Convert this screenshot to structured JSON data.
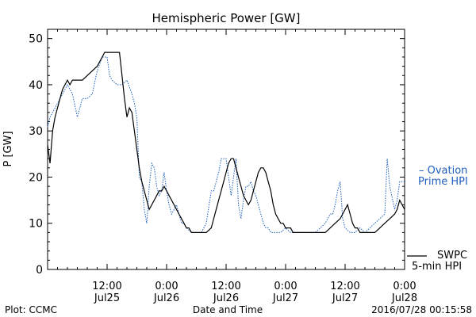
{
  "chart_data": {
    "type": "line",
    "title": "Hemispheric Power [GW]",
    "xlabel": "Date and Time",
    "ylabel": "P [GW]",
    "ylim": [
      0,
      52
    ],
    "xlim_hours": [
      0,
      72
    ],
    "grid": false,
    "yticks": [
      "0",
      "10",
      "20",
      "30",
      "40",
      "50"
    ],
    "xticks": [
      {
        "hour": 12,
        "time": "12:00",
        "date": "Jul25"
      },
      {
        "hour": 24,
        "time": "0:00",
        "date": "Jul26"
      },
      {
        "hour": 36,
        "time": "12:00",
        "date": "Jul26"
      },
      {
        "hour": 48,
        "time": "0:00",
        "date": "Jul27"
      },
      {
        "hour": 60,
        "time": "12:00",
        "date": "Jul27"
      },
      {
        "hour": 72,
        "time": "0:00",
        "date": "Jul28"
      }
    ],
    "series": [
      {
        "name": "SWPC 5-min HPI",
        "legend_lines": [
          "SWPC",
          "5-min HPI"
        ],
        "color": "#000000",
        "style": "solid",
        "points": [
          [
            0.0,
            27
          ],
          [
            0.5,
            23
          ],
          [
            1.0,
            30
          ],
          [
            1.5,
            33
          ],
          [
            2.0,
            35
          ],
          [
            2.5,
            37
          ],
          [
            3.0,
            39
          ],
          [
            3.5,
            40
          ],
          [
            4.0,
            41
          ],
          [
            4.5,
            40
          ],
          [
            5.0,
            41
          ],
          [
            6.0,
            41
          ],
          [
            7.0,
            41
          ],
          [
            8.0,
            42
          ],
          [
            9.0,
            43
          ],
          [
            10.0,
            44
          ],
          [
            11.0,
            46
          ],
          [
            11.5,
            47
          ],
          [
            12.0,
            47
          ],
          [
            13.0,
            47
          ],
          [
            14.0,
            47
          ],
          [
            14.5,
            47
          ],
          [
            15.0,
            42
          ],
          [
            15.5,
            37
          ],
          [
            16.0,
            33
          ],
          [
            16.5,
            35
          ],
          [
            17.0,
            34
          ],
          [
            17.5,
            30
          ],
          [
            18.0,
            26
          ],
          [
            18.5,
            22
          ],
          [
            19.0,
            19
          ],
          [
            19.5,
            17
          ],
          [
            20.0,
            15
          ],
          [
            20.5,
            13
          ],
          [
            21.0,
            14
          ],
          [
            21.5,
            15
          ],
          [
            22.0,
            16
          ],
          [
            22.5,
            17
          ],
          [
            23.0,
            17
          ],
          [
            23.5,
            18
          ],
          [
            24.0,
            17
          ],
          [
            24.5,
            16
          ],
          [
            25.0,
            15
          ],
          [
            25.5,
            14
          ],
          [
            26.0,
            13
          ],
          [
            26.5,
            12
          ],
          [
            27.0,
            11
          ],
          [
            27.5,
            10
          ],
          [
            28.0,
            9
          ],
          [
            28.5,
            9
          ],
          [
            29.0,
            8
          ],
          [
            30.0,
            8
          ],
          [
            31.0,
            8
          ],
          [
            32.0,
            8
          ],
          [
            33.0,
            9
          ],
          [
            33.5,
            11
          ],
          [
            34.0,
            13
          ],
          [
            34.5,
            15
          ],
          [
            35.0,
            17
          ],
          [
            35.5,
            19
          ],
          [
            36.0,
            21
          ],
          [
            36.5,
            23
          ],
          [
            37.0,
            24
          ],
          [
            37.5,
            24
          ],
          [
            38.0,
            22
          ],
          [
            38.5,
            20
          ],
          [
            39.0,
            18
          ],
          [
            39.5,
            16
          ],
          [
            40.0,
            15
          ],
          [
            40.5,
            14
          ],
          [
            41.0,
            15
          ],
          [
            41.5,
            17
          ],
          [
            42.0,
            19
          ],
          [
            42.5,
            21
          ],
          [
            43.0,
            22
          ],
          [
            43.5,
            22
          ],
          [
            44.0,
            21
          ],
          [
            44.5,
            19
          ],
          [
            45.0,
            17
          ],
          [
            45.5,
            14
          ],
          [
            46.0,
            12
          ],
          [
            46.5,
            11
          ],
          [
            47.0,
            10
          ],
          [
            47.5,
            10
          ],
          [
            48.0,
            9
          ],
          [
            48.5,
            9
          ],
          [
            49.0,
            9
          ],
          [
            49.5,
            8
          ],
          [
            50.0,
            8
          ],
          [
            51.0,
            8
          ],
          [
            52.0,
            8
          ],
          [
            53.0,
            8
          ],
          [
            54.0,
            8
          ],
          [
            55.0,
            8
          ],
          [
            56.0,
            8
          ],
          [
            57.0,
            9
          ],
          [
            58.0,
            10
          ],
          [
            59.0,
            11
          ],
          [
            59.5,
            12
          ],
          [
            60.0,
            13
          ],
          [
            60.5,
            14
          ],
          [
            61.0,
            12
          ],
          [
            61.5,
            10
          ],
          [
            62.0,
            9
          ],
          [
            62.5,
            9
          ],
          [
            63.0,
            8
          ],
          [
            64.0,
            8
          ],
          [
            65.0,
            8
          ],
          [
            66.0,
            8
          ],
          [
            67.0,
            9
          ],
          [
            68.0,
            10
          ],
          [
            69.0,
            11
          ],
          [
            70.0,
            12
          ],
          [
            70.5,
            13
          ],
          [
            71.0,
            15
          ],
          [
            71.5,
            14
          ],
          [
            72.0,
            13
          ]
        ]
      },
      {
        "name": "Ovation Prime HPI",
        "legend_lines": [
          "– Ovation",
          "Prime HPI"
        ],
        "color": "#1f5fbf",
        "style": "dotted",
        "points": [
          [
            0.0,
            31
          ],
          [
            0.5,
            33
          ],
          [
            1.0,
            34
          ],
          [
            2.0,
            36
          ],
          [
            3.0,
            38
          ],
          [
            4.0,
            40
          ],
          [
            5.0,
            38
          ],
          [
            6.0,
            33
          ],
          [
            7.0,
            37
          ],
          [
            8.0,
            37
          ],
          [
            9.0,
            38
          ],
          [
            10.0,
            43
          ],
          [
            11.0,
            46
          ],
          [
            12.0,
            46
          ],
          [
            12.5,
            42
          ],
          [
            13.0,
            41
          ],
          [
            14.0,
            40
          ],
          [
            15.0,
            40
          ],
          [
            16.0,
            41
          ],
          [
            17.0,
            38
          ],
          [
            17.5,
            36
          ],
          [
            18.0,
            33
          ],
          [
            18.5,
            20
          ],
          [
            19.0,
            19
          ],
          [
            19.5,
            13
          ],
          [
            20.0,
            10
          ],
          [
            20.5,
            18
          ],
          [
            21.0,
            23
          ],
          [
            21.5,
            22
          ],
          [
            22.0,
            18
          ],
          [
            22.5,
            16
          ],
          [
            23.0,
            17
          ],
          [
            23.5,
            21
          ],
          [
            24.0,
            17
          ],
          [
            24.5,
            14
          ],
          [
            25.0,
            12
          ],
          [
            25.5,
            13
          ],
          [
            26.0,
            14
          ],
          [
            26.5,
            12
          ],
          [
            27.0,
            10
          ],
          [
            27.5,
            10
          ],
          [
            28.0,
            9
          ],
          [
            29.0,
            8
          ],
          [
            30.0,
            8
          ],
          [
            31.0,
            8
          ],
          [
            32.0,
            10
          ],
          [
            33.0,
            17
          ],
          [
            33.5,
            17
          ],
          [
            34.0,
            19
          ],
          [
            34.5,
            21
          ],
          [
            35.0,
            24
          ],
          [
            35.5,
            24
          ],
          [
            36.0,
            24
          ],
          [
            36.5,
            20
          ],
          [
            37.0,
            16
          ],
          [
            37.5,
            20
          ],
          [
            38.0,
            24
          ],
          [
            38.5,
            14
          ],
          [
            39.0,
            11
          ],
          [
            39.5,
            15
          ],
          [
            40.0,
            18
          ],
          [
            40.5,
            18
          ],
          [
            41.0,
            19
          ],
          [
            41.5,
            17
          ],
          [
            42.0,
            16
          ],
          [
            42.5,
            14
          ],
          [
            43.0,
            12
          ],
          [
            43.5,
            10
          ],
          [
            44.0,
            9
          ],
          [
            44.5,
            9
          ],
          [
            45.0,
            8
          ],
          [
            46.0,
            8
          ],
          [
            47.0,
            8
          ],
          [
            48.0,
            9
          ],
          [
            49.0,
            8
          ],
          [
            50.0,
            8
          ],
          [
            51.0,
            8
          ],
          [
            52.0,
            8
          ],
          [
            53.0,
            8
          ],
          [
            54.0,
            8
          ],
          [
            55.0,
            9
          ],
          [
            56.0,
            10
          ],
          [
            57.0,
            12
          ],
          [
            57.5,
            12
          ],
          [
            58.0,
            14
          ],
          [
            58.5,
            17
          ],
          [
            59.0,
            19
          ],
          [
            59.5,
            11
          ],
          [
            60.0,
            9
          ],
          [
            61.0,
            8
          ],
          [
            62.0,
            8
          ],
          [
            63.0,
            9
          ],
          [
            64.0,
            8
          ],
          [
            65.0,
            9
          ],
          [
            66.0,
            10
          ],
          [
            67.0,
            11
          ],
          [
            68.0,
            12
          ],
          [
            68.5,
            24
          ],
          [
            69.0,
            18
          ],
          [
            70.0,
            13
          ],
          [
            70.5,
            15
          ],
          [
            71.0,
            19
          ],
          [
            72.0,
            19
          ]
        ]
      }
    ]
  },
  "footer": {
    "left": "Plot: CCMC",
    "timestamp": "2016/07/28 00:15:58"
  }
}
